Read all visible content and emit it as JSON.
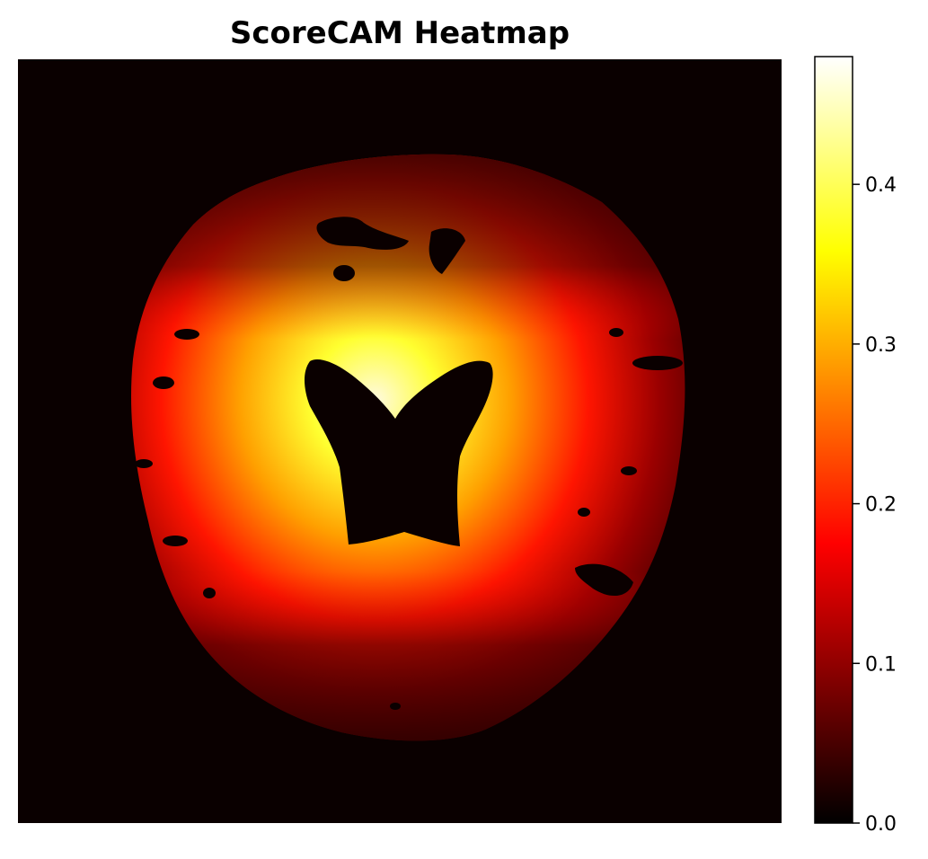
{
  "chart_data": {
    "type": "heatmap",
    "title": "ScoreCAM Heatmap",
    "xlabel": "",
    "ylabel": "",
    "axes_visible": false,
    "colormap": "hot",
    "colorbar": {
      "range": [
        0.0,
        0.48
      ],
      "ticks": [
        0.0,
        0.1,
        0.2,
        0.3,
        0.4
      ],
      "tick_labels": [
        "0.0",
        "0.1",
        "0.2",
        "0.3",
        "0.4"
      ],
      "placement": "right"
    },
    "regions": [
      {
        "name": "background",
        "value": 0.0
      },
      {
        "name": "outer-ring",
        "value": 0.05
      },
      {
        "name": "mid-band",
        "value": 0.2
      },
      {
        "name": "hot-core",
        "value": 0.46
      },
      {
        "name": "central-mask",
        "value": 0.0
      }
    ]
  }
}
